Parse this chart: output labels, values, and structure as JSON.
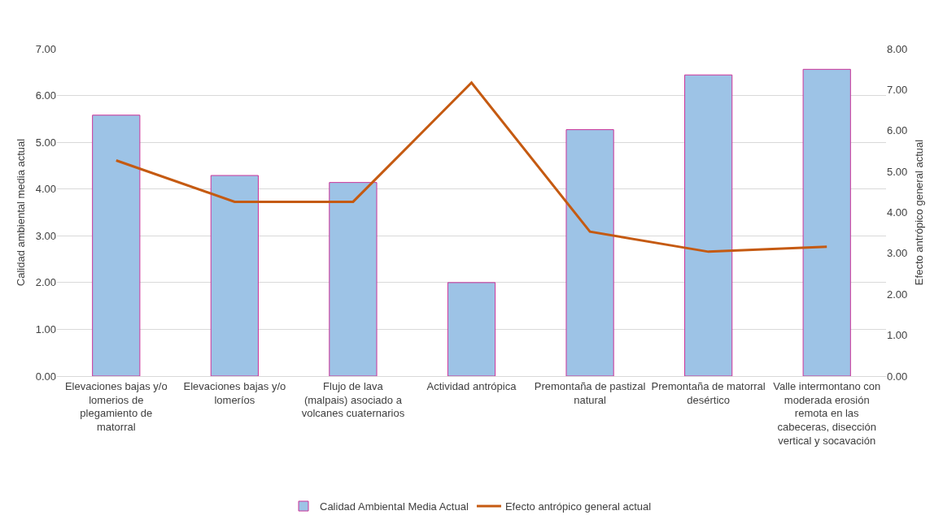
{
  "chart_data": {
    "type": "bar",
    "categories": [
      "Elevaciones bajas y/o lomerios de plegamiento de matorral",
      "Elevaciones bajas y/o lomeríos",
      "Flujo de lava (malpais) asociado a volcanes cuaternarios",
      "Actividad antrópica",
      "Premontaña de pastizal natural",
      "Premontaña de matorral desértico",
      "Valle intermontano con moderada erosión remota en las cabeceras, disección vertical y socavación"
    ],
    "series": [
      {
        "name": "Calidad Ambiental Media Actual",
        "color": "#9dc3e6",
        "values": [
          5.58,
          4.29,
          4.14,
          2.0,
          5.27,
          6.44,
          6.56
        ]
      },
      {
        "name": "Efecto antrópico general actual",
        "type": "line",
        "axis": "y2",
        "color": "#c55a11",
        "values": [
          5.27,
          4.26,
          4.26,
          7.17,
          3.53,
          3.04,
          3.16
        ]
      }
    ],
    "ylabel": "Calidad ambiental media actual",
    "y2label": "Efecto antrópico general actual",
    "ylim": [
      0,
      7
    ],
    "yticks": [
      {
        "value": 0,
        "label": "0.00"
      },
      {
        "value": 1,
        "label": "1.00"
      },
      {
        "value": 2,
        "label": "2.00"
      },
      {
        "value": 3,
        "label": "3.00"
      },
      {
        "value": 4,
        "label": "4.00"
      },
      {
        "value": 5,
        "label": "5.00"
      },
      {
        "value": 6,
        "label": "6.00"
      },
      {
        "value": 7,
        "label": "7.00"
      }
    ],
    "y2lim": [
      0,
      8
    ],
    "y2ticks": [
      {
        "value": 0,
        "label": "0.00"
      },
      {
        "value": 1,
        "label": "1.00"
      },
      {
        "value": 2,
        "label": "2.00"
      },
      {
        "value": 3,
        "label": "3.00"
      },
      {
        "value": 4,
        "label": "4.00"
      },
      {
        "value": 5,
        "label": "5.00"
      },
      {
        "value": 6,
        "label": "6.00"
      },
      {
        "value": 7,
        "label": "7.00"
      },
      {
        "value": 8,
        "label": "8.00"
      }
    ],
    "grid": "y",
    "legend": "bottom",
    "marker": "none",
    "line_style": "solid"
  }
}
